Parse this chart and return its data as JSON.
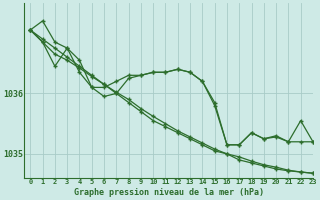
{
  "title": "Graphe pression niveau de la mer (hPa)",
  "bg_color": "#ceeae6",
  "line_color": "#2d6e2d",
  "grid_color": "#a8ccc8",
  "xlim": [
    -0.5,
    23
  ],
  "ylim": [
    1034.6,
    1037.5
  ],
  "yticks": [
    1035,
    1036
  ],
  "xticks": [
    0,
    1,
    2,
    3,
    4,
    5,
    6,
    7,
    8,
    9,
    10,
    11,
    12,
    13,
    14,
    15,
    16,
    17,
    18,
    19,
    20,
    21,
    22,
    23
  ],
  "series_straight": [
    1037.05,
    1036.9,
    1036.75,
    1036.6,
    1036.45,
    1036.3,
    1036.15,
    1036.0,
    1035.85,
    1035.7,
    1035.55,
    1035.45,
    1035.35,
    1035.25,
    1035.15,
    1035.05,
    1035.0,
    1034.9,
    1034.85,
    1034.8,
    1034.75,
    1034.72,
    1034.7,
    1034.68
  ],
  "series_straight2": [
    1037.05,
    1036.85,
    1036.65,
    1036.55,
    1036.42,
    1036.28,
    1036.15,
    1036.02,
    1035.9,
    1035.75,
    1035.62,
    1035.5,
    1035.38,
    1035.28,
    1035.18,
    1035.08,
    1035.0,
    1034.95,
    1034.88,
    1034.82,
    1034.78,
    1034.73,
    1034.7,
    1034.68
  ],
  "series_wavy": [
    1037.05,
    1037.2,
    1036.85,
    1036.75,
    1036.55,
    1036.1,
    1036.1,
    1036.2,
    1036.3,
    1036.3,
    1036.35,
    1036.35,
    1036.4,
    1036.35,
    1036.2,
    1035.85,
    1035.15,
    1035.15,
    1035.35,
    1035.25,
    1035.3,
    1035.2,
    1035.55,
    1035.2
  ],
  "series_jagged": [
    1037.05,
    1036.85,
    1036.45,
    1036.75,
    1036.35,
    1036.1,
    1035.95,
    1036.0,
    1036.25,
    1036.3,
    1036.35,
    1036.35,
    1036.4,
    1036.35,
    1036.2,
    1035.8,
    1035.15,
    1035.15,
    1035.35,
    1035.25,
    1035.28,
    1035.2,
    1035.2,
    1035.2
  ]
}
